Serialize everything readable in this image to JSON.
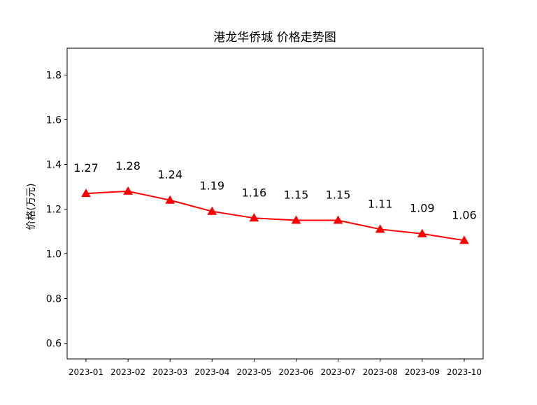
{
  "chart_data": {
    "type": "line",
    "title": "港龙华侨城 价格走势图",
    "xlabel": "",
    "ylabel": "价格(万元)",
    "categories": [
      "2023-01",
      "2023-02",
      "2023-03",
      "2023-04",
      "2023-05",
      "2023-06",
      "2023-07",
      "2023-08",
      "2023-09",
      "2023-10"
    ],
    "series": [
      {
        "values": [
          1.27,
          1.28,
          1.24,
          1.19,
          1.16,
          1.15,
          1.15,
          1.11,
          1.09,
          1.06
        ],
        "color": "#ff0000",
        "marker": "triangle-up"
      }
    ],
    "data_labels": [
      "1.27",
      "1.28",
      "1.24",
      "1.19",
      "1.16",
      "1.15",
      "1.15",
      "1.11",
      "1.09",
      "1.06"
    ],
    "ylim": [
      0.53,
      1.92
    ],
    "yticks": [
      0.6,
      0.8,
      1.0,
      1.2,
      1.4,
      1.6,
      1.8
    ],
    "ytick_labels": [
      "0.6",
      "0.8",
      "1.0",
      "1.2",
      "1.4",
      "1.6",
      "1.8"
    ],
    "grid": false,
    "legend": "none"
  }
}
